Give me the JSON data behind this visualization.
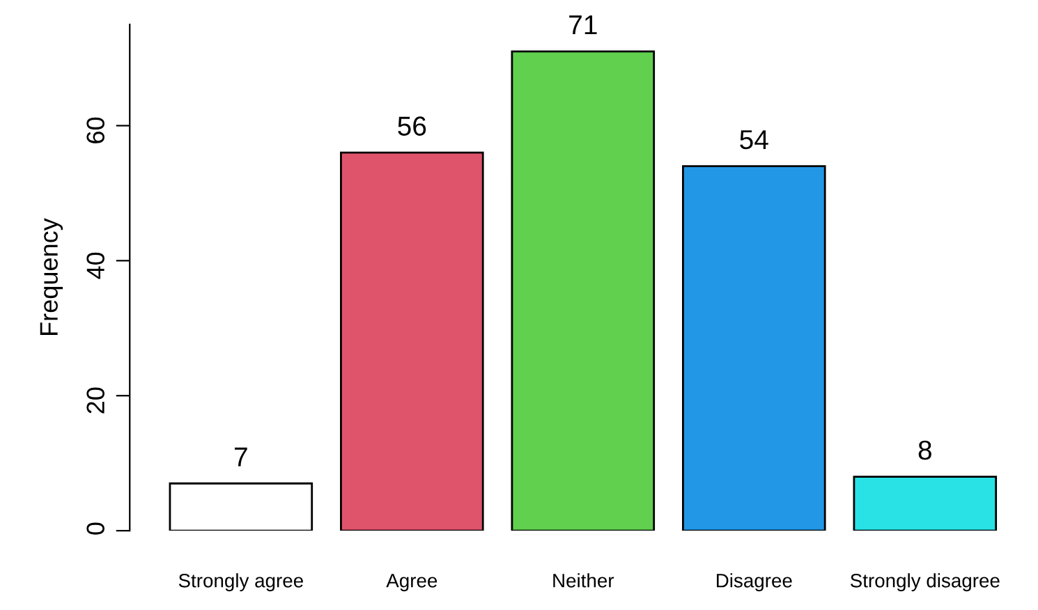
{
  "chart_data": {
    "type": "bar",
    "ylabel": "Frequency",
    "categories": [
      "Strongly agree",
      "Agree",
      "Neither",
      "Disagree",
      "Strongly disagree"
    ],
    "values": [
      7,
      56,
      71,
      54,
      8
    ],
    "colors": [
      "#ffffff",
      "#df536b",
      "#61d04f",
      "#2297e6",
      "#28e2e5"
    ],
    "ylim": [
      0,
      75
    ],
    "yticks": [
      0,
      20,
      40,
      60
    ],
    "data_labels": true,
    "grid": false,
    "legend": false
  }
}
